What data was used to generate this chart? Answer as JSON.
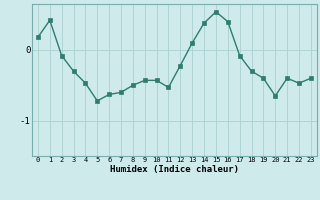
{
  "x": [
    0,
    1,
    2,
    3,
    4,
    5,
    6,
    7,
    8,
    9,
    10,
    11,
    12,
    13,
    14,
    15,
    16,
    17,
    18,
    19,
    20,
    21,
    22,
    23
  ],
  "y": [
    0.18,
    0.42,
    -0.08,
    -0.3,
    -0.47,
    -0.72,
    -0.63,
    -0.6,
    -0.5,
    -0.43,
    -0.43,
    -0.53,
    -0.22,
    0.1,
    0.38,
    0.54,
    0.4,
    -0.08,
    -0.3,
    -0.4,
    -0.65,
    -0.4,
    -0.47,
    -0.4
  ],
  "xlim": [
    -0.5,
    23.5
  ],
  "ylim": [
    -1.5,
    0.65
  ],
  "yticks": [
    0,
    -1
  ],
  "xticks": [
    0,
    1,
    2,
    3,
    4,
    5,
    6,
    7,
    8,
    9,
    10,
    11,
    12,
    13,
    14,
    15,
    16,
    17,
    18,
    19,
    20,
    21,
    22,
    23
  ],
  "xlabel": "Humidex (Indice chaleur)",
  "line_color": "#2e7d6e",
  "bg_color": "#ceeaea",
  "grid_color": "#aed4d4",
  "marker_color": "#2e7d6e"
}
